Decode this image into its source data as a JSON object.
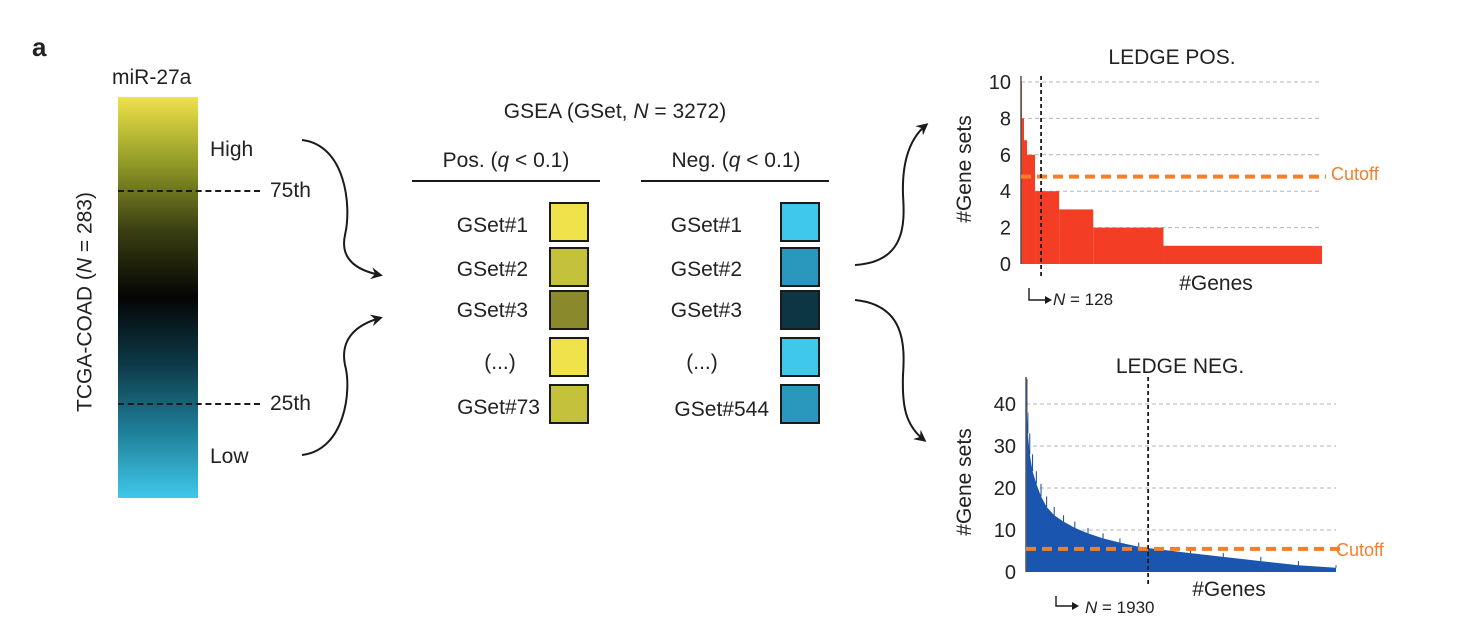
{
  "panel_label": "a",
  "heatbar": {
    "title": "miR-27a",
    "high_label": "High",
    "low_label": "Low",
    "p75_label": "75th",
    "p25_label": "25th",
    "cohort_label_prefix": "TCGA-COAD (",
    "cohort_label_n": "N",
    "cohort_label_suffix": " = 283)",
    "gradient_colors": [
      "#efe24a",
      "#8f9a26",
      "#3a3f12",
      "#050505",
      "#0d3a48",
      "#1f7f99",
      "#3fc8ea"
    ]
  },
  "gsea": {
    "title_prefix": "GSEA (GSet, ",
    "title_n": "N",
    "title_suffix": " = 3272)",
    "pos_header": {
      "prefix": "Pos. (",
      "q": "q",
      "suffix": " < 0.1)"
    },
    "neg_header": {
      "prefix": "Neg. (",
      "q": "q",
      "suffix": " < 0.1)"
    },
    "pos_items": [
      {
        "label": "GSet#1",
        "color": "#efe24a"
      },
      {
        "label": "GSet#2",
        "color": "#c3c23a"
      },
      {
        "label": "GSet#3",
        "color": "#8a8a2c"
      },
      {
        "label": "(...)",
        "color": "#efe24a"
      },
      {
        "label": "GSet#73",
        "color": "#c3c23a"
      }
    ],
    "neg_items": [
      {
        "label": "GSet#1",
        "color": "#3fc8ea"
      },
      {
        "label": "GSet#2",
        "color": "#2a98bd"
      },
      {
        "label": "GSet#3",
        "color": "#0c3644"
      },
      {
        "label": "(...)",
        "color": "#3fc8ea"
      },
      {
        "label": "GSet#544",
        "color": "#2a98bd"
      }
    ]
  },
  "chart_data": [
    {
      "type": "area",
      "title": "LEDGE POS.",
      "xlabel": "#Genes",
      "ylabel": "#Gene sets",
      "ylim": [
        0,
        10
      ],
      "yticks": [
        0,
        2,
        4,
        6,
        8,
        10
      ],
      "grid": true,
      "color": "#f43d25",
      "steps": [
        {
          "start": 0,
          "end": 1,
          "y": 10
        },
        {
          "start": 1,
          "end": 3,
          "y": 8
        },
        {
          "start": 3,
          "end": 6,
          "y": 6.8
        },
        {
          "start": 6,
          "end": 14,
          "y": 6
        },
        {
          "start": 14,
          "end": 38,
          "y": 4
        },
        {
          "start": 38,
          "end": 72,
          "y": 3
        },
        {
          "start": 72,
          "end": 142,
          "y": 2
        },
        {
          "start": 142,
          "end": 300,
          "y": 1
        }
      ],
      "x_max": 300,
      "cutoff": 4.8,
      "cutoff_label": "Cutoff",
      "cutoff_color": "#f47f2a",
      "marker_x": 20,
      "marker_label_prefix": "N",
      "marker_label_suffix": " = 128"
    },
    {
      "type": "area",
      "title": "LEDGE NEG.",
      "xlabel": "#Genes",
      "ylabel": "#Gene sets",
      "ylim": [
        0,
        45
      ],
      "yticks": [
        0,
        10,
        20,
        30,
        40
      ],
      "grid": true,
      "color": "#1a56b0",
      "curve": [
        {
          "x": 0,
          "y": 46
        },
        {
          "x": 1,
          "y": 38
        },
        {
          "x": 2,
          "y": 33
        },
        {
          "x": 4,
          "y": 28
        },
        {
          "x": 7,
          "y": 24
        },
        {
          "x": 11,
          "y": 21
        },
        {
          "x": 16,
          "y": 18
        },
        {
          "x": 22,
          "y": 15.5
        },
        {
          "x": 30,
          "y": 13.5
        },
        {
          "x": 40,
          "y": 12
        },
        {
          "x": 52,
          "y": 10.5
        },
        {
          "x": 66,
          "y": 9.2
        },
        {
          "x": 82,
          "y": 8
        },
        {
          "x": 100,
          "y": 7
        },
        {
          "x": 120,
          "y": 6
        },
        {
          "x": 145,
          "y": 5.3
        },
        {
          "x": 175,
          "y": 4.5
        },
        {
          "x": 210,
          "y": 3.6
        },
        {
          "x": 250,
          "y": 2.6
        },
        {
          "x": 290,
          "y": 1.6
        },
        {
          "x": 330,
          "y": 1
        }
      ],
      "x_max": 330,
      "cutoff": 5.5,
      "cutoff_label": "Cutoff",
      "cutoff_color": "#f47f2a",
      "marker_x": 130,
      "marker_label_prefix": "N",
      "marker_label_suffix": " = 1930"
    }
  ]
}
